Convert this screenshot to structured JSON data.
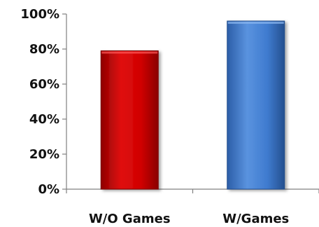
{
  "chart_data": {
    "type": "bar",
    "categories": [
      "W/O Games",
      "W/Games"
    ],
    "values": [
      79,
      96
    ],
    "ylim": [
      0,
      100
    ],
    "yticks": [
      0,
      20,
      40,
      60,
      80,
      100
    ],
    "ytick_labels": [
      "0%",
      "20%",
      "40%",
      "60%",
      "80%",
      "100%"
    ],
    "bar_colors": [
      "#cc0000",
      "#3a78c8"
    ],
    "grid": false,
    "legend": "none"
  }
}
